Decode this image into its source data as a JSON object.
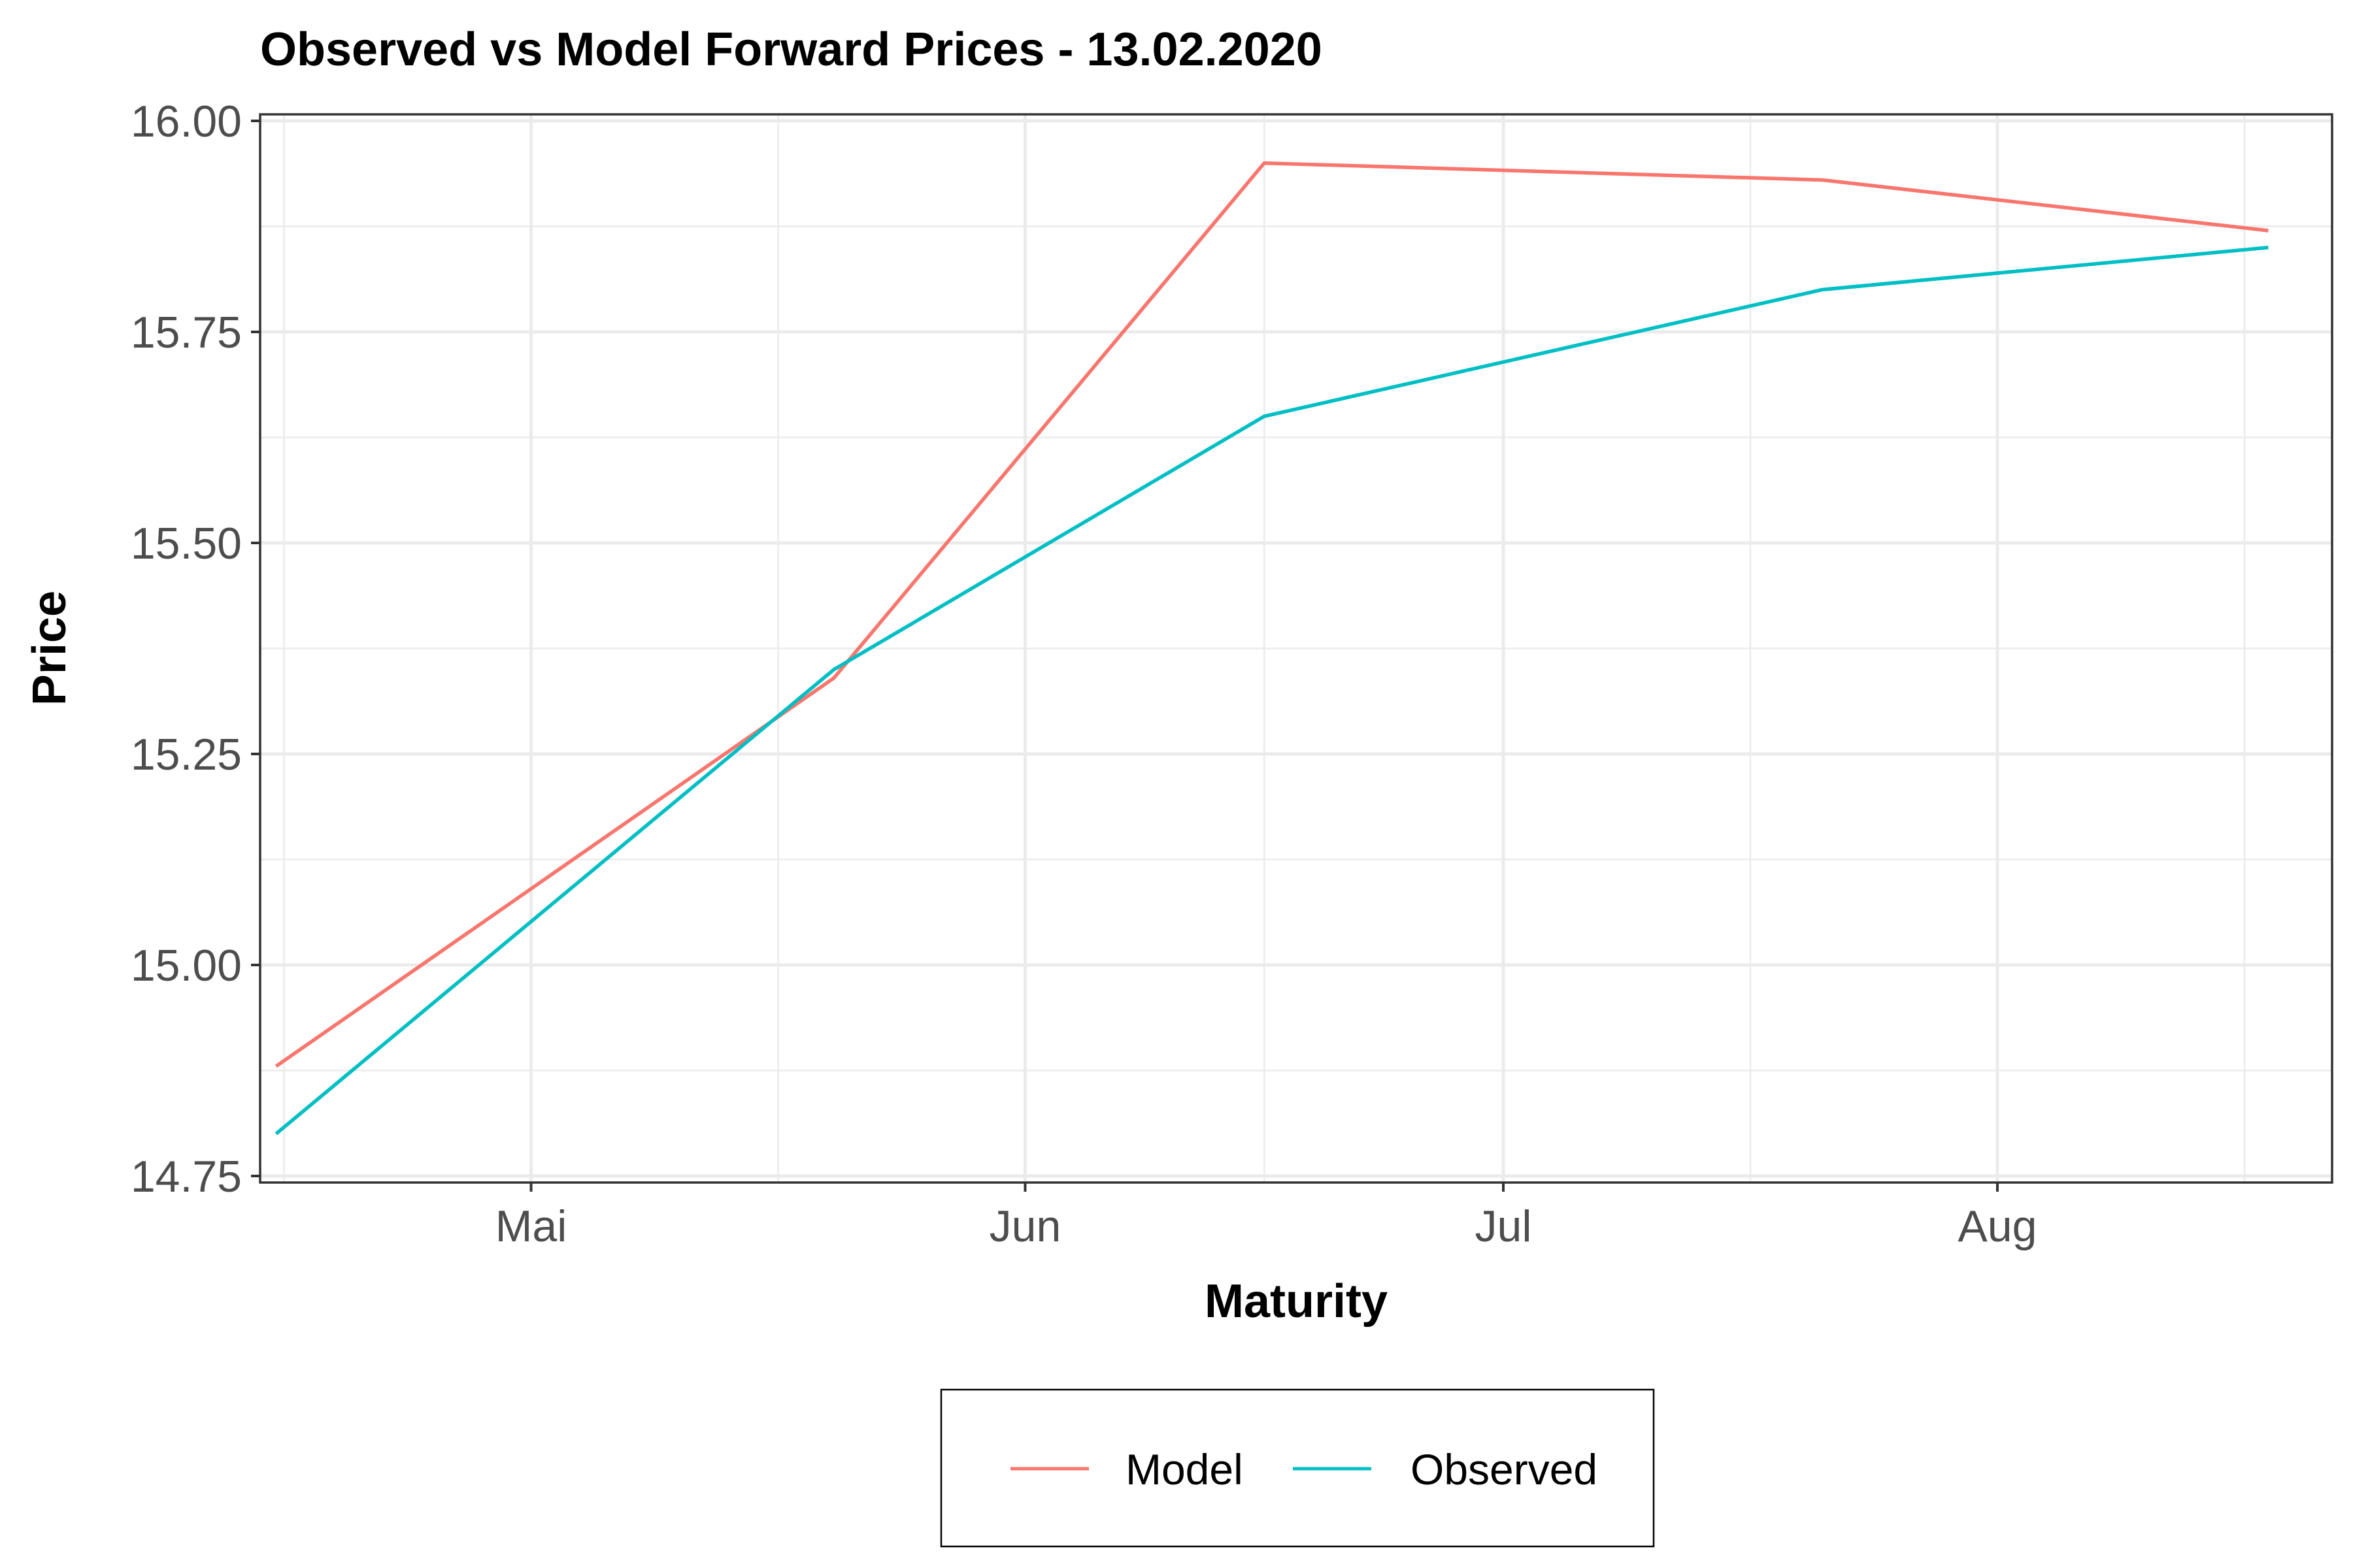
{
  "chart_data": {
    "type": "line",
    "title": "Observed vs Model Forward Prices - 13.02.2020",
    "xlabel": "Maturity",
    "ylabel": "Price",
    "x_axis_type": "date",
    "xlim": [
      "2020-04-14",
      "2020-08-22"
    ],
    "ylim": [
      14.75,
      16.0
    ],
    "x_ticks": [
      {
        "date": "2020-05-01",
        "label": "Mai"
      },
      {
        "date": "2020-06-01",
        "label": "Jun"
      },
      {
        "date": "2020-07-01",
        "label": "Jul"
      },
      {
        "date": "2020-08-01",
        "label": "Aug"
      }
    ],
    "y_ticks": [
      14.75,
      15.0,
      15.25,
      15.5,
      15.75,
      16.0
    ],
    "y_tick_labels": [
      "14.75",
      "15.00",
      "15.25",
      "15.50",
      "15.75",
      "16.00"
    ],
    "grid": true,
    "legend_position": "bottom",
    "x": [
      "2020-04-15",
      "2020-05-20",
      "2020-06-16",
      "2020-07-21",
      "2020-08-18"
    ],
    "series": [
      {
        "name": "Model",
        "color": "#F8766D",
        "values": [
          14.88,
          15.34,
          15.95,
          15.93,
          15.87
        ]
      },
      {
        "name": "Observed",
        "color": "#00BFC4",
        "values": [
          14.8,
          15.35,
          15.65,
          15.8,
          15.85
        ]
      }
    ]
  }
}
